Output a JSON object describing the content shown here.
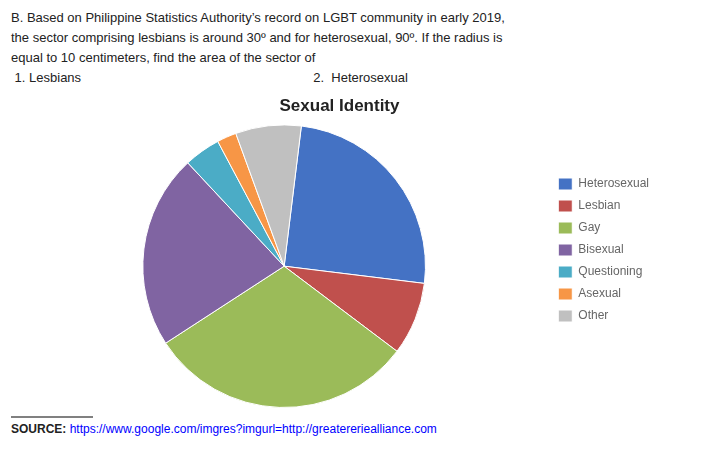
{
  "chart_data": {
    "type": "pie",
    "title": "Sexual Identity",
    "annotations": [
      [
        "B. Based on Philippine Statistics Authority’s record on LGBT community in early 2019,"
      ],
      [
        "the sector comprising lesbians is around 30º and for heterosexual, 90º. If the radius is"
      ],
      [
        "equal to 10 centimeters, find the area of the sector of"
      ],
      [
        " 1. Lesbians",
        "2.  Heterosexual"
      ]
    ],
    "source": [
      "SOURCE: ",
      "https://www.google.com/imgres?imgurl=http://greatereriealliance.com"
    ],
    "categories": [
      "Heterosexual",
      "Lesbian",
      "Gay",
      "Bisexual",
      "Questioning",
      "Asexual",
      "Other"
    ],
    "values": [
      90,
      30,
      110,
      80,
      15,
      8,
      27
    ],
    "colors": [
      "#4472C4",
      "#C0504D",
      "#9BBB59",
      "#8064A2",
      "#4BACC6",
      "#F79646",
      "#C0C0C0"
    ],
    "legend": "right"
  }
}
